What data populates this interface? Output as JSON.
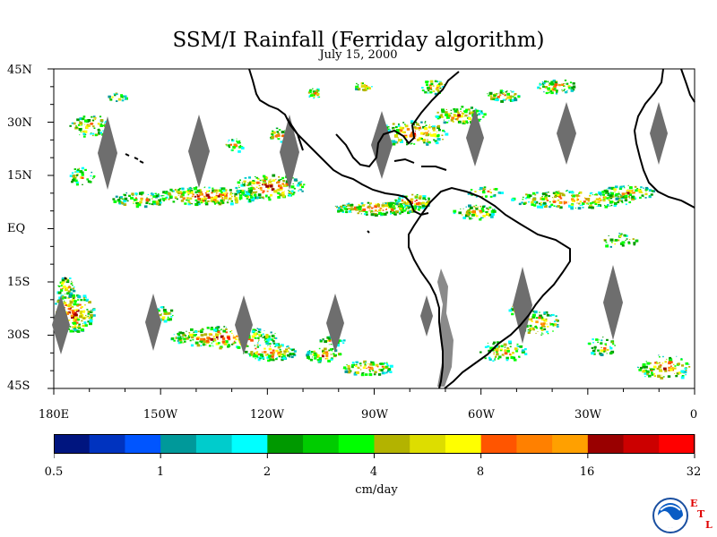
{
  "title": "SSM/I Rainfall (Ferriday algorithm)",
  "subtitle": "July 15, 2000",
  "lat_labels": [
    "45N",
    "30N",
    "15N",
    "EQ",
    "15S",
    "30S",
    "45S"
  ],
  "lon_labels": [
    "180E",
    "150W",
    "120W",
    "90W",
    "60W",
    "30W",
    "0"
  ],
  "colorbar": {
    "colors": [
      "#00157f",
      "#0033bf",
      "#0055ff",
      "#00999a",
      "#00cccc",
      "#00ffff",
      "#009900",
      "#00cc00",
      "#00ff00",
      "#b3b300",
      "#dddd00",
      "#ffff00",
      "#ff5500",
      "#ff8000",
      "#ffa000",
      "#990000",
      "#cc0000",
      "#ff0000"
    ],
    "tick_labels": [
      "0.5",
      "1",
      "2",
      "4",
      "8",
      "16",
      "32"
    ],
    "unit": "cm/day"
  },
  "logo": {
    "icon": "noaa-logo-icon",
    "letters": [
      "E",
      "T",
      "L"
    ]
  }
}
